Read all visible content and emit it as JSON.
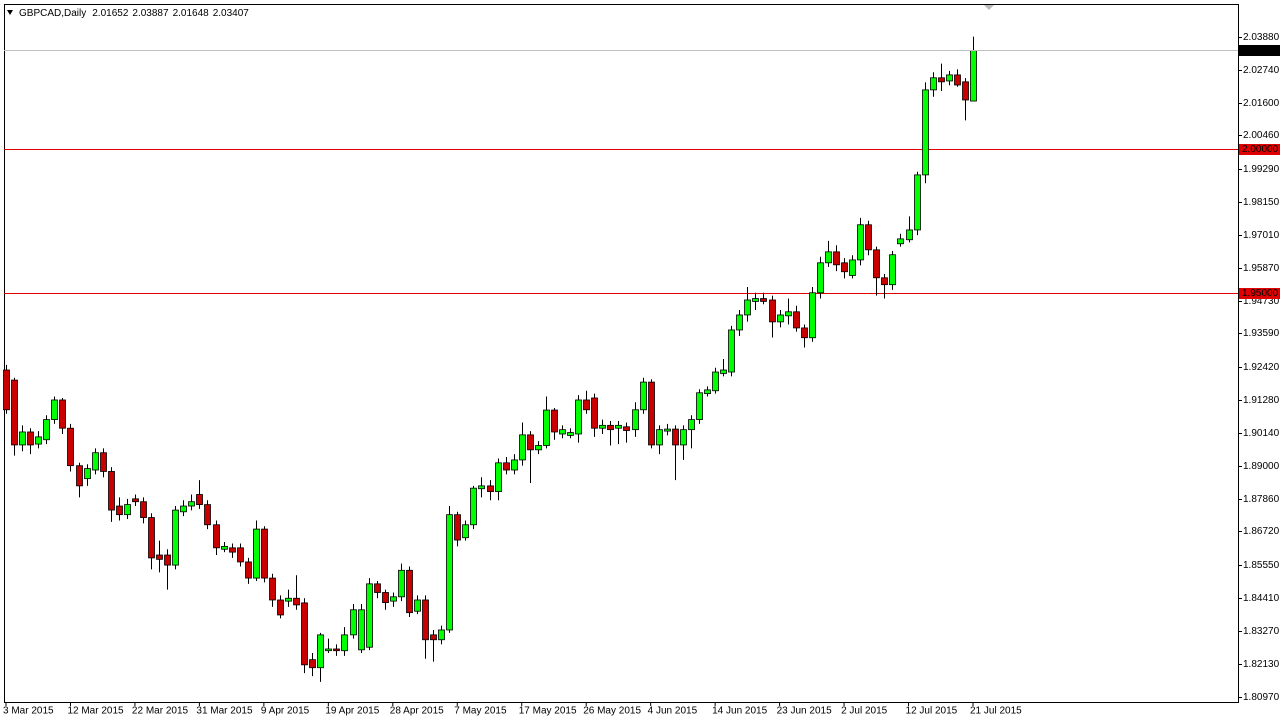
{
  "chart_data": {
    "type": "candlestick",
    "symbol": "GBPCAD,Daily",
    "categories": [
      "3 Mar 2015",
      null,
      null,
      null,
      null,
      null,
      null,
      null,
      "12 Mar 2015",
      null,
      null,
      null,
      null,
      null,
      null,
      null,
      "22 Mar 2015",
      null,
      null,
      null,
      null,
      null,
      null,
      null,
      "31 Mar 2015",
      null,
      null,
      null,
      null,
      null,
      null,
      null,
      "9 Apr 2015",
      null,
      null,
      null,
      null,
      null,
      null,
      null,
      "19 Apr 2015",
      null,
      null,
      null,
      null,
      null,
      null,
      null,
      "28 Apr 2015",
      null,
      null,
      null,
      null,
      null,
      null,
      null,
      "7 May 2015",
      null,
      null,
      null,
      null,
      null,
      null,
      null,
      "17 May 2015",
      null,
      null,
      null,
      null,
      null,
      null,
      null,
      "26 May 2015",
      null,
      null,
      null,
      null,
      null,
      null,
      null,
      "4 Jun 2015",
      null,
      null,
      null,
      null,
      null,
      null,
      null,
      "14 Jun 2015",
      null,
      null,
      null,
      null,
      null,
      null,
      null,
      "23 Jun 2015",
      null,
      null,
      null,
      null,
      null,
      null,
      null,
      "2 Jul 2015",
      null,
      null,
      null,
      null,
      null,
      null,
      null,
      "12 Jul 2015",
      null,
      null,
      null,
      null,
      null,
      null,
      null,
      "21 Jul 2015"
    ],
    "open": [
      1.9232,
      1.9197,
      1.8972,
      1.9017,
      1.8975,
      1.899,
      1.906,
      1.9128,
      1.903,
      1.89,
      1.8855,
      1.8885,
      1.8945,
      1.888,
      1.876,
      1.873,
      1.8785,
      1.8775,
      1.872,
      1.859,
      1.859,
      1.8555,
      1.874,
      1.876,
      1.88,
      1.8765,
      1.8695,
      1.861,
      1.8615,
      1.8615,
      1.8566,
      1.851,
      1.868,
      1.851,
      1.8434,
      1.843,
      1.844,
      1.8424,
      1.8227,
      1.8199,
      1.8258,
      1.8264,
      1.8258,
      1.8313,
      1.8261,
      1.827,
      1.849,
      1.846,
      1.843,
      1.8445,
      1.8537,
      1.8395,
      1.8434,
      1.8313,
      1.8296,
      1.833,
      1.873,
      1.865,
      1.8695,
      1.882,
      1.883,
      1.881,
      1.891,
      1.8885,
      1.892,
      1.9007,
      1.8955,
      1.897,
      1.9093,
      1.901,
      1.9005,
      1.901,
      1.9128,
      1.9135,
      1.903,
      1.904,
      1.903,
      1.9035,
      1.9025,
      1.9094,
      1.919,
      1.8972,
      1.902,
      1.9027,
      1.8972,
      1.9025,
      1.906,
      1.915,
      1.916,
      1.922,
      1.9225,
      1.9371,
      1.9423,
      1.947,
      1.948,
      1.9475,
      1.9399,
      1.942,
      1.9434,
      1.9378,
      1.9344,
      1.95,
      1.9604,
      1.9642,
      1.9604,
      1.956,
      1.9614,
      1.9736,
      1.9649,
      1.9552,
      1.9528,
      1.967,
      1.9684,
      1.9718,
      1.9909,
      2.0204,
      2.0246,
      2.0235,
      2.0256,
      2.0232,
      2.01652
    ],
    "high": [
      1.925,
      1.9205,
      1.904,
      1.903,
      1.902,
      1.9075,
      1.914,
      1.9135,
      1.9045,
      1.891,
      1.8905,
      1.896,
      1.896,
      1.8895,
      1.879,
      1.8785,
      1.88,
      1.879,
      1.8735,
      1.864,
      1.861,
      1.876,
      1.878,
      1.88,
      1.885,
      1.878,
      1.871,
      1.8635,
      1.863,
      1.863,
      1.858,
      1.871,
      1.869,
      1.8525,
      1.845,
      1.847,
      1.852,
      1.844,
      1.825,
      1.832,
      1.83,
      1.828,
      1.834,
      1.842,
      1.842,
      1.851,
      1.85,
      1.847,
      1.846,
      1.856,
      1.855,
      1.845,
      1.845,
      1.833,
      1.8345,
      1.876,
      1.874,
      1.871,
      1.883,
      1.886,
      1.885,
      1.8925,
      1.893,
      1.894,
      1.905,
      1.902,
      1.8985,
      1.914,
      1.91,
      1.904,
      1.903,
      1.9145,
      1.916,
      1.915,
      1.906,
      1.9055,
      1.9055,
      1.905,
      1.912,
      1.9205,
      1.92,
      1.904,
      1.9045,
      1.904,
      1.904,
      1.9075,
      1.9165,
      1.9175,
      1.924,
      1.927,
      1.9385,
      1.944,
      1.952,
      1.95,
      1.95,
      1.949,
      1.944,
      1.948,
      1.9455,
      1.939,
      1.952,
      1.9625,
      1.968,
      1.9665,
      1.962,
      1.963,
      1.976,
      1.975,
      1.966,
      1.9565,
      1.9645,
      1.9705,
      1.9765,
      1.992,
      2.023,
      2.0265,
      2.0295,
      2.027,
      2.0275,
      2.0245,
      2.03887
    ],
    "low": [
      1.908,
      1.8935,
      1.895,
      1.894,
      1.896,
      1.8975,
      1.9045,
      1.901,
      1.888,
      1.879,
      1.883,
      1.887,
      1.886,
      1.8705,
      1.871,
      1.8715,
      1.876,
      1.87,
      1.854,
      1.853,
      1.847,
      1.854,
      1.8725,
      1.8745,
      1.875,
      1.868,
      1.859,
      1.86,
      1.858,
      1.855,
      1.849,
      1.85,
      1.8495,
      1.841,
      1.837,
      1.841,
      1.84,
      1.818,
      1.817,
      1.815,
      1.825,
      1.824,
      1.824,
      1.83,
      1.825,
      1.826,
      1.844,
      1.84,
      1.841,
      1.843,
      1.8375,
      1.8385,
      1.823,
      1.822,
      1.828,
      1.832,
      1.862,
      1.864,
      1.868,
      1.879,
      1.878,
      1.878,
      1.887,
      1.887,
      1.89,
      1.884,
      1.894,
      1.896,
      1.899,
      1.8995,
      1.8995,
      1.898,
      1.908,
      1.9,
      1.901,
      1.897,
      1.8975,
      1.898,
      1.9,
      1.908,
      1.896,
      1.894,
      1.9005,
      1.885,
      1.892,
      1.896,
      1.9045,
      1.914,
      1.915,
      1.921,
      1.921,
      1.935,
      1.94,
      1.944,
      1.946,
      1.9345,
      1.938,
      1.939,
      1.9365,
      1.931,
      1.933,
      1.948,
      1.959,
      1.9575,
      1.955,
      1.955,
      1.9595,
      1.963,
      1.949,
      1.948,
      1.951,
      1.966,
      1.9675,
      1.97,
      1.988,
      2.018,
      2.02,
      2.022,
      2.0215,
      2.0098,
      2.01648
    ],
    "close": [
      1.9094,
      1.8972,
      1.9017,
      1.8972,
      1.9,
      1.906,
      1.9128,
      1.903,
      1.89,
      1.883,
      1.889,
      1.8945,
      1.888,
      1.8746,
      1.873,
      1.8765,
      1.8775,
      1.872,
      1.858,
      1.8575,
      1.8555,
      1.8746,
      1.876,
      1.8775,
      1.8765,
      1.8695,
      1.8615,
      1.862,
      1.86,
      1.8566,
      1.851,
      1.868,
      1.851,
      1.8434,
      1.8382,
      1.844,
      1.8417,
      1.8209,
      1.8199,
      1.8313,
      1.8264,
      1.8258,
      1.8313,
      1.84,
      1.84,
      1.849,
      1.846,
      1.8425,
      1.8445,
      1.8537,
      1.839,
      1.8434,
      1.8296,
      1.8296,
      1.833,
      1.873,
      1.8642,
      1.8695,
      1.8822,
      1.883,
      1.881,
      1.891,
      1.8885,
      1.892,
      1.9007,
      1.8955,
      1.897,
      1.9093,
      1.9017,
      1.9025,
      1.9015,
      1.9128,
      1.9094,
      1.903,
      1.904,
      1.9025,
      1.904,
      1.9022,
      1.9094,
      1.919,
      1.8972,
      1.9025,
      1.9027,
      1.8972,
      1.9025,
      1.906,
      1.9153,
      1.9163,
      1.9225,
      1.9232,
      1.9371,
      1.9423,
      1.9475,
      1.948,
      1.947,
      1.9399,
      1.9423,
      1.9434,
      1.9378,
      1.9344,
      1.95,
      1.9604,
      1.9642,
      1.9597,
      1.9573,
      1.9614,
      1.9736,
      1.9649,
      1.9552,
      1.9528,
      1.9632,
      1.9687,
      1.9718,
      1.9909,
      2.0204,
      2.0246,
      2.0232,
      2.0256,
      2.0221,
      2.0169,
      2.03407
    ],
    "up_color": "#00ff00",
    "down_color": "#c80000",
    "ylim": [
      1.808,
      2.0502
    ],
    "yticks": [
      {
        "value": 2.0388,
        "label": "2.03880"
      },
      {
        "value": 2.0274,
        "label": "2.02740"
      },
      {
        "value": 2.016,
        "label": "2.01600"
      },
      {
        "value": 2.0046,
        "label": "2.00460"
      },
      {
        "value": 1.9929,
        "label": "1.99290"
      },
      {
        "value": 1.9815,
        "label": "1.98150"
      },
      {
        "value": 1.9701,
        "label": "1.97010"
      },
      {
        "value": 1.9587,
        "label": "1.95870"
      },
      {
        "value": 1.9473,
        "label": "1.94730"
      },
      {
        "value": 1.9359,
        "label": "1.93590"
      },
      {
        "value": 1.9242,
        "label": "1.92420"
      },
      {
        "value": 1.9128,
        "label": "1.91280"
      },
      {
        "value": 1.9014,
        "label": "1.90140"
      },
      {
        "value": 1.89,
        "label": "1.89000"
      },
      {
        "value": 1.8786,
        "label": "1.87860"
      },
      {
        "value": 1.8672,
        "label": "1.86720"
      },
      {
        "value": 1.8555,
        "label": "1.85550"
      },
      {
        "value": 1.8441,
        "label": "1.84410"
      },
      {
        "value": 1.8327,
        "label": "1.83270"
      },
      {
        "value": 1.8213,
        "label": "1.82130"
      },
      {
        "value": 1.8097,
        "label": "1.80970"
      }
    ],
    "levels": [
      {
        "value": 2,
        "label": "2.00000",
        "color": "#e00000"
      },
      {
        "value": 1.95,
        "label": "1.95000",
        "color": "#e00000"
      }
    ],
    "price_line_color": "#c0c0c0"
  }
}
